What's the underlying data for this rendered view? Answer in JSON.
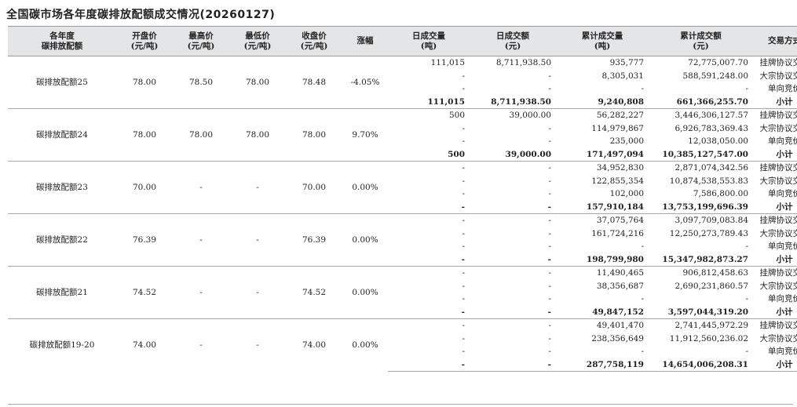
{
  "title": "全国碳市场各年度碳排放配额成交情况(20260127)",
  "headers": [
    [
      "各年度",
      "碳排放配额"
    ],
    [
      "开盘价",
      "(元/吨)"
    ],
    [
      "最高价",
      "(元/吨)"
    ],
    [
      "最低价",
      "(元/吨)"
    ],
    [
      "收盘价",
      "(元/吨)"
    ],
    [
      "涨幅"
    ],
    [
      "日成交量",
      "(吨)"
    ],
    [
      "日成交额",
      "(元)"
    ],
    [
      "累计成交量",
      "(吨)"
    ],
    [
      "累计成交额",
      "(元)"
    ],
    [
      "交易方式"
    ]
  ],
  "groups": [
    {
      "name": "碳排放配额25",
      "open": "78.00",
      "high": "78.50",
      "low": "78.00",
      "close": "78.48",
      "change": "-4.05%",
      "rows": [
        {
          "dv": "111,015",
          "da": "8,711,938.50",
          "cv": "935,777",
          "ca": "72,775,007.70",
          "mode": "挂牌协议交易"
        },
        {
          "dv": "-",
          "da": "-",
          "cv": "8,305,031",
          "ca": "588,591,248.00",
          "mode": "大宗协议交易"
        },
        {
          "dv": "-",
          "da": "-",
          "cv": "-",
          "ca": "-",
          "mode": "单向竞价"
        },
        {
          "dv": "111,015",
          "da": "8,711,938.50",
          "cv": "9,240,808",
          "ca": "661,366,255.70",
          "mode": "小计"
        }
      ]
    },
    {
      "name": "碳排放配额24",
      "open": "78.00",
      "high": "78.00",
      "low": "78.00",
      "close": "78.00",
      "change": "9.70%",
      "rows": [
        {
          "dv": "500",
          "da": "39,000.00",
          "cv": "56,282,227",
          "ca": "3,446,306,127.57",
          "mode": "挂牌协议交易"
        },
        {
          "dv": "-",
          "da": "-",
          "cv": "114,979,867",
          "ca": "6,926,783,369.43",
          "mode": "大宗协议交易"
        },
        {
          "dv": "-",
          "da": "-",
          "cv": "235,000",
          "ca": "12,038,050.00",
          "mode": "单向竞价"
        },
        {
          "dv": "500",
          "da": "39,000.00",
          "cv": "171,497,094",
          "ca": "10,385,127,547.00",
          "mode": "小计"
        }
      ]
    },
    {
      "name": "碳排放配额23",
      "open": "70.00",
      "high": "-",
      "low": "-",
      "close": "70.00",
      "change": "0.00%",
      "rows": [
        {
          "dv": "-",
          "da": "-",
          "cv": "34,952,830",
          "ca": "2,871,074,342.56",
          "mode": "挂牌协议交易"
        },
        {
          "dv": "-",
          "da": "-",
          "cv": "122,855,354",
          "ca": "10,874,538,553.83",
          "mode": "大宗协议交易"
        },
        {
          "dv": "-",
          "da": "-",
          "cv": "102,000",
          "ca": "7,586,800.00",
          "mode": "单向竞价"
        },
        {
          "dv": "-",
          "da": "-",
          "cv": "157,910,184",
          "ca": "13,753,199,696.39",
          "mode": "小计"
        }
      ]
    },
    {
      "name": "碳排放配额22",
      "open": "76.39",
      "high": "-",
      "low": "-",
      "close": "76.39",
      "change": "0.00%",
      "rows": [
        {
          "dv": "-",
          "da": "-",
          "cv": "37,075,764",
          "ca": "3,097,709,083.84",
          "mode": "挂牌协议交易"
        },
        {
          "dv": "-",
          "da": "-",
          "cv": "161,724,216",
          "ca": "12,250,273,789.43",
          "mode": "大宗协议交易"
        },
        {
          "dv": "-",
          "da": "-",
          "cv": "-",
          "ca": "-",
          "mode": "单向竞价"
        },
        {
          "dv": "-",
          "da": "-",
          "cv": "198,799,980",
          "ca": "15,347,982,873.27",
          "mode": "小计"
        }
      ]
    },
    {
      "name": "碳排放配额21",
      "open": "74.52",
      "high": "-",
      "low": "-",
      "close": "74.52",
      "change": "0.00%",
      "rows": [
        {
          "dv": "-",
          "da": "-",
          "cv": "11,490,465",
          "ca": "906,812,458.63",
          "mode": "挂牌协议交易"
        },
        {
          "dv": "-",
          "da": "-",
          "cv": "38,356,687",
          "ca": "2,690,231,860.57",
          "mode": "大宗协议交易"
        },
        {
          "dv": "-",
          "da": "-",
          "cv": "-",
          "ca": "-",
          "mode": "单向竞价"
        },
        {
          "dv": "-",
          "da": "-",
          "cv": "49,847,152",
          "ca": "3,597,044,319.20",
          "mode": "小计"
        }
      ]
    },
    {
      "name": "碳排放配额19-20",
      "open": "74.00",
      "high": "-",
      "low": "-",
      "close": "74.00",
      "change": "0.00%",
      "rows": [
        {
          "dv": "-",
          "da": "-",
          "cv": "49,401,470",
          "ca": "2,741,445,972.29",
          "mode": "挂牌协议交易"
        },
        {
          "dv": "-",
          "da": "-",
          "cv": "238,356,649",
          "ca": "11,912,560,236.02",
          "mode": "大宗协议交易"
        },
        {
          "dv": "-",
          "da": "-",
          "cv": "-",
          "ca": "-",
          "mode": "单向竞价"
        },
        {
          "dv": "-",
          "da": "-",
          "cv": "287,758,119",
          "ca": "14,654,006,208.31",
          "mode": "小计"
        }
      ]
    }
  ]
}
